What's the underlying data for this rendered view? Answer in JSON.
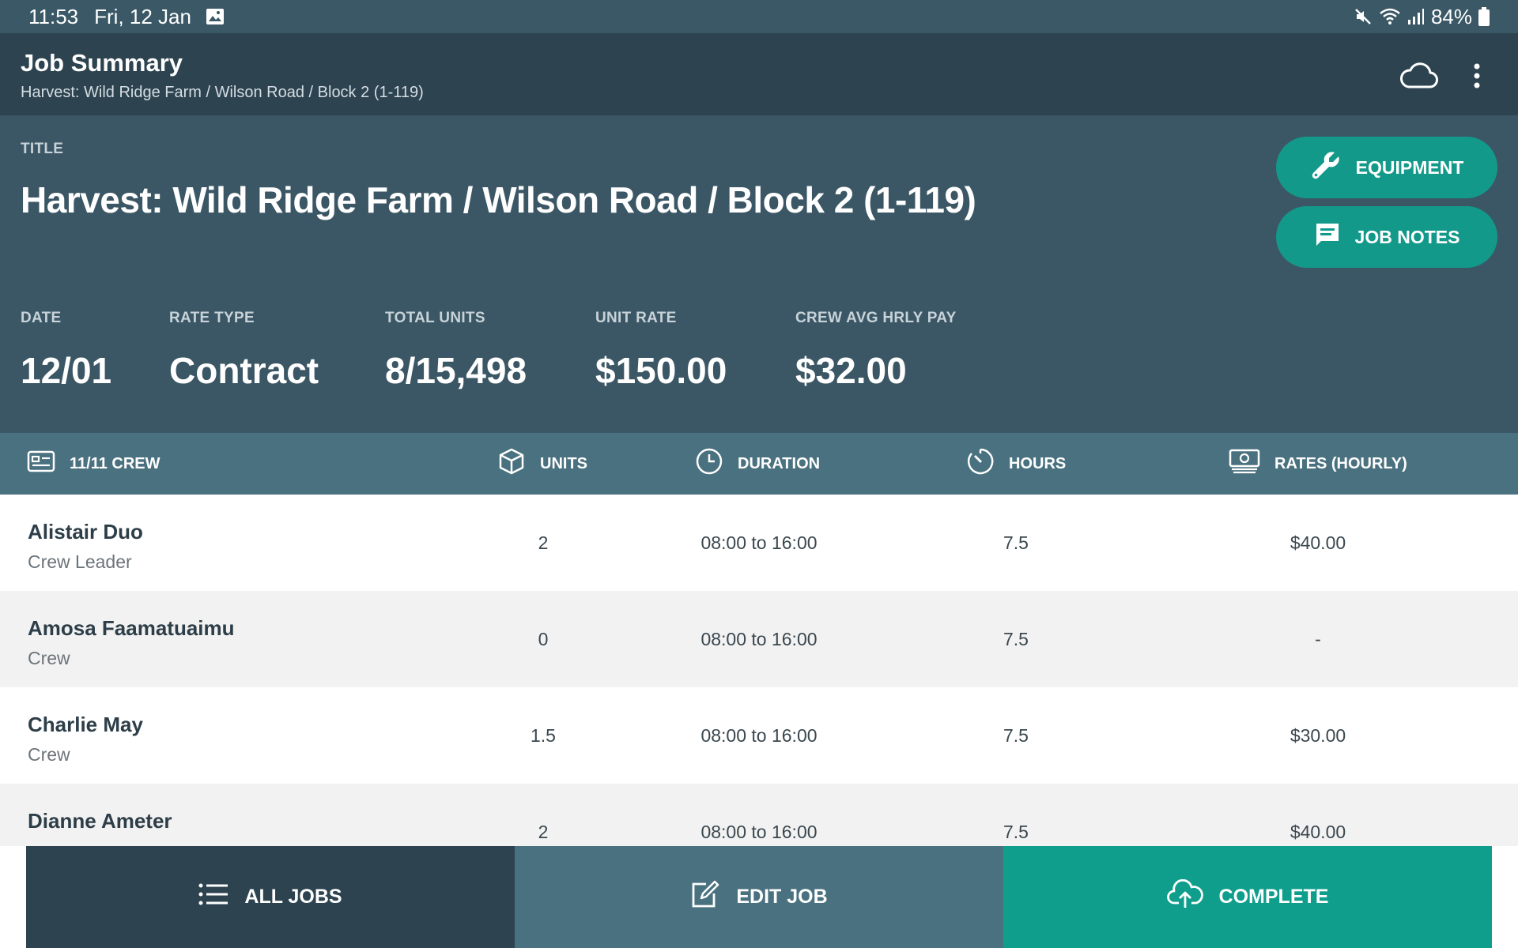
{
  "status_bar": {
    "time": "11:53",
    "date": "Fri, 12 Jan",
    "battery": "84%"
  },
  "app_bar": {
    "title": "Job Summary",
    "subtitle": "Harvest: Wild Ridge Farm / Wilson Road / Block 2 (1-119)"
  },
  "summary": {
    "title_label": "TITLE",
    "title_value": "Harvest: Wild Ridge Farm / Wilson Road / Block 2 (1-119)",
    "equipment_label": "EQUIPMENT",
    "job_notes_label": "JOB NOTES",
    "stats": [
      {
        "label": "DATE",
        "value": "12/01"
      },
      {
        "label": "RATE TYPE",
        "value": "Contract"
      },
      {
        "label": "TOTAL UNITS",
        "value": "8/15,498"
      },
      {
        "label": "UNIT RATE",
        "value": "$150.00"
      },
      {
        "label": "CREW AVG HRLY PAY",
        "value": "$32.00"
      }
    ]
  },
  "table": {
    "headers": {
      "crew": "11/11 CREW",
      "units": "UNITS",
      "duration": "DURATION",
      "hours": "HOURS",
      "rates": "RATES (HOURLY)"
    },
    "rows": [
      {
        "name": "Alistair Duo",
        "role": "Crew Leader",
        "units": "2",
        "duration": "08:00 to 16:00",
        "hours": "7.5",
        "rate": "$40.00"
      },
      {
        "name": "Amosa Faamatuaimu",
        "role": "Crew",
        "units": "0",
        "duration": "08:00 to 16:00",
        "hours": "7.5",
        "rate": "-"
      },
      {
        "name": "Charlie May",
        "role": "Crew",
        "units": "1.5",
        "duration": "08:00 to 16:00",
        "hours": "7.5",
        "rate": "$30.00"
      },
      {
        "name": "Dianne Ameter",
        "role": "",
        "units": "2",
        "duration": "08:00 to 16:00",
        "hours": "7.5",
        "rate": "$40.00"
      }
    ]
  },
  "bottom_bar": {
    "all_jobs": "ALL JOBS",
    "edit_job": "EDIT JOB",
    "complete": "COMPLETE"
  },
  "colors": {
    "dark_header": "#2d4350",
    "summary_bg": "#3b5765",
    "table_header": "#4a717f",
    "accent_teal": "#13998a"
  },
  "icons": [
    "gallery-icon",
    "mute-icon",
    "wifi-icon",
    "signal-icon",
    "battery-icon",
    "cloud-icon",
    "more-vert-icon",
    "wrench-icon",
    "chat-icon",
    "id-card-icon",
    "cube-icon",
    "clock-icon",
    "timer-icon",
    "money-icon",
    "list-icon",
    "edit-icon",
    "upload-cloud-icon"
  ]
}
